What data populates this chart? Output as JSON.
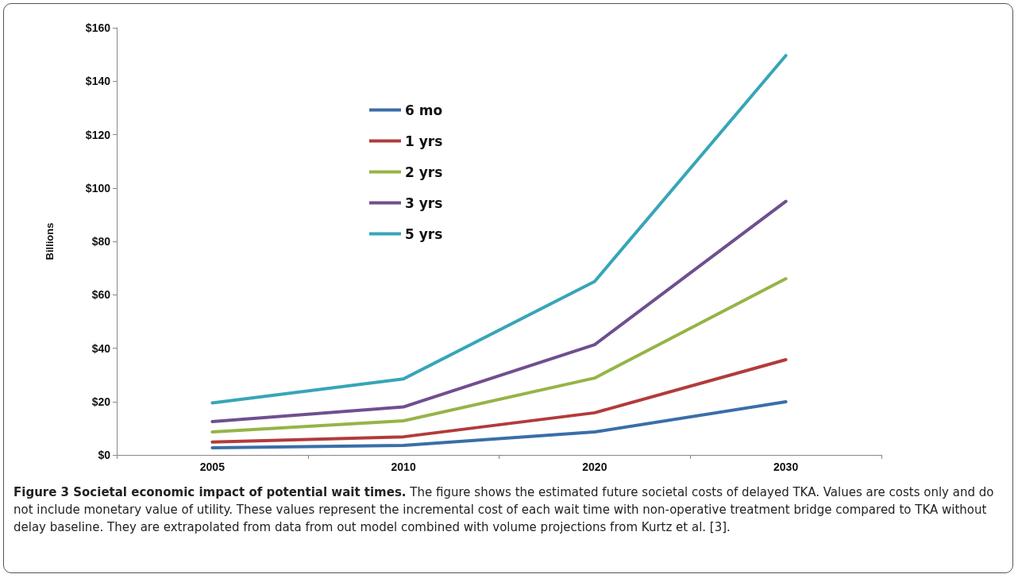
{
  "chart_data": {
    "type": "line",
    "title": "Figure 3 Societal economic impact of potential wait times.",
    "annotations": [
      "The figure shows the estimated future societal costs of delayed TKA. Values are costs only and do not include monetary value of utility. These values represent the incremental cost of each wait time with non-operative treatment bridge compared to TKA without delay baseline. They are extrapolated from data from out model combined with volume projections from Kurtz et al. [3]."
    ],
    "ylabel": "Billions",
    "categories": [
      "2005",
      "2010",
      "2020",
      "2030"
    ],
    "series": [
      {
        "name": "6 mo",
        "color": "#3a6ea8",
        "values": [
          2.7,
          3.6,
          8.6,
          19.9
        ]
      },
      {
        "name": "1 yrs",
        "color": "#b23b3b",
        "values": [
          4.8,
          6.8,
          15.8,
          35.7
        ]
      },
      {
        "name": "2 yrs",
        "color": "#95b447",
        "values": [
          8.6,
          12.8,
          28.8,
          66
        ]
      },
      {
        "name": "3 yrs",
        "color": "#6f4f90",
        "values": [
          12.5,
          18,
          41.3,
          95
        ]
      },
      {
        "name": "5 yrs",
        "color": "#37a5b8",
        "values": [
          19.5,
          28.5,
          65,
          149.6
        ]
      }
    ],
    "ylim": [
      0,
      160
    ],
    "yticks": [
      {
        "value": 0,
        "label": "$0"
      },
      {
        "value": 20,
        "label": "$20"
      },
      {
        "value": 40,
        "label": "$40"
      },
      {
        "value": 60,
        "label": "$60"
      },
      {
        "value": 80,
        "label": "$80"
      },
      {
        "value": 100,
        "label": "$100"
      },
      {
        "value": 120,
        "label": "$120"
      },
      {
        "value": 140,
        "label": "$140"
      },
      {
        "value": 160,
        "label": "$160"
      }
    ],
    "grid": false,
    "legend": "top left",
    "marker": "none",
    "line_style": "solid"
  }
}
